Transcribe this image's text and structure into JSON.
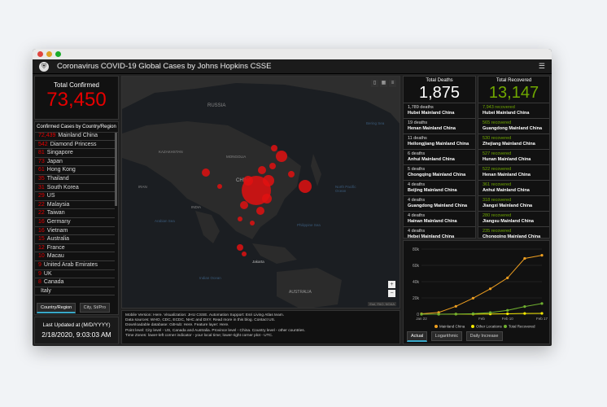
{
  "window": {
    "title": "Coronavirus COVID-19 Global Cases by Johns Hopkins CSSE",
    "menu_icon": "hamburger-icon"
  },
  "confirmed": {
    "label": "Total Confirmed",
    "value": "73,450"
  },
  "country_list": {
    "header": "Confirmed Cases by Country/Region",
    "rows": [
      {
        "count": "72,439",
        "name": "Mainland China"
      },
      {
        "count": "542",
        "name": "Diamond Princess"
      },
      {
        "count": "81",
        "name": "Singapore"
      },
      {
        "count": "73",
        "name": "Japan"
      },
      {
        "count": "61",
        "name": "Hong Kong"
      },
      {
        "count": "35",
        "name": "Thailand"
      },
      {
        "count": "31",
        "name": "South Korea"
      },
      {
        "count": "29",
        "name": "US"
      },
      {
        "count": "22",
        "name": "Malaysia"
      },
      {
        "count": "22",
        "name": "Taiwan"
      },
      {
        "count": "16",
        "name": "Germany"
      },
      {
        "count": "16",
        "name": "Vietnam"
      },
      {
        "count": "15",
        "name": "Australia"
      },
      {
        "count": "12",
        "name": "France"
      },
      {
        "count": "10",
        "name": "Macau"
      },
      {
        "count": "9",
        "name": "United Arab Emirates"
      },
      {
        "count": "9",
        "name": "UK"
      },
      {
        "count": "8",
        "name": "Canada"
      },
      {
        "count": "",
        "name": "Italy"
      }
    ],
    "tabs": [
      "Country/Region",
      "City, St/Pro"
    ]
  },
  "last_updated": {
    "label": "Last Updated at (M/D/YYYY)",
    "value": "2/18/2020, 9:03:03 AM"
  },
  "map": {
    "labels": {
      "russia": "RUSSIA",
      "kazakhstan": "KAZAKHSTAN",
      "mongolia": "MONGOLIA",
      "china": "CHINA",
      "iran": "IRAN",
      "india": "INDIA",
      "australia": "AUSTRALIA",
      "pacific": "North Pacific Ocean",
      "indian_ocean": "Indian Ocean",
      "bering": "Bering Sea",
      "arabian": "Arabian Sea",
      "philippine": "Philippine Sea",
      "jakarta": "Jakarta"
    },
    "attribution": "Esri, FAO, NOAA",
    "zoom_in": "+",
    "zoom_out": "−"
  },
  "info_text": [
    "Mobile Version: Here. Visualization: JHU CSSE. Automation Support: Esri Living Atlas team.",
    "Data sources: WHO, CDC, ECDC, NHC and DXY. Read more in this blog. Contact US.",
    "Downloadable database: GitHub: Here. Feature layer: Here.",
    "Point level: City level - US, Canada and Australia. Province level - China. Country level - other countries.",
    "Time Zones: lower-left corner indicator - your local time; lower-right corner plot - UTC."
  ],
  "deaths": {
    "label": "Total Deaths",
    "value": "1,875",
    "rows": [
      {
        "count": "1,789 deaths",
        "place": "Hubei Mainland China"
      },
      {
        "count": "19 deaths",
        "place": "Henan Mainland China"
      },
      {
        "count": "11 deaths",
        "place": "Heilongjiang Mainland China"
      },
      {
        "count": "6 deaths",
        "place": "Anhui Mainland China"
      },
      {
        "count": "5 deaths",
        "place": "Chongqing Mainland China"
      },
      {
        "count": "4 deaths",
        "place": "Beijing Mainland China"
      },
      {
        "count": "4 deaths",
        "place": "Guangdong Mainland China"
      },
      {
        "count": "4 deaths",
        "place": "Hainan Mainland China"
      },
      {
        "count": "4 deaths",
        "place": "Hebei Mainland China"
      }
    ]
  },
  "recovered": {
    "label": "Total Recovered",
    "value": "13,147",
    "rows": [
      {
        "count": "7,943 recovered",
        "place": "Hubei Mainland China"
      },
      {
        "count": "565 recovered",
        "place": "Guangdong Mainland China"
      },
      {
        "count": "530 recovered",
        "place": "Zhejiang Mainland China"
      },
      {
        "count": "527 recovered",
        "place": "Hunan Mainland China"
      },
      {
        "count": "522 recovered",
        "place": "Henan Mainland China"
      },
      {
        "count": "361 recovered",
        "place": "Anhui Mainland China"
      },
      {
        "count": "318 recovered",
        "place": "Jiangxi Mainland China"
      },
      {
        "count": "280 recovered",
        "place": "Jiangsu Mainland China"
      },
      {
        "count": "235 recovered",
        "place": "Chongqing Mainland China"
      }
    ]
  },
  "chart_data": {
    "type": "line",
    "x": [
      "Jan 22",
      "Jan 26",
      "Jan 30",
      "Feb 3",
      "Feb 7",
      "Feb 11",
      "Feb 15",
      "Feb 17"
    ],
    "x_ticks": [
      "Jan 22",
      "Feb",
      "Feb 10",
      "Feb 17"
    ],
    "y_ticks": [
      "80k",
      "60k",
      "40k",
      "20k",
      "0"
    ],
    "ylim": [
      0,
      80000
    ],
    "series": [
      {
        "name": "Mainland China",
        "color": "#f0a020",
        "values": [
          550,
          2100,
          9700,
          19700,
          31200,
          44600,
          68500,
          72400
        ]
      },
      {
        "name": "Other Locations",
        "color": "#f5e800",
        "values": [
          5,
          20,
          90,
          150,
          300,
          500,
          900,
          1000
        ]
      },
      {
        "name": "Total Recovered",
        "color": "#70b030",
        "values": [
          28,
          49,
          171,
          632,
          2050,
          4740,
          9400,
          13147
        ]
      }
    ],
    "tabs": [
      "Actual",
      "Logarithmic",
      "Daily Increase"
    ]
  },
  "colors": {
    "confirmed": "#e60000",
    "recovered": "#70a800",
    "panel": "#111111",
    "map": "#1d1d1d"
  }
}
